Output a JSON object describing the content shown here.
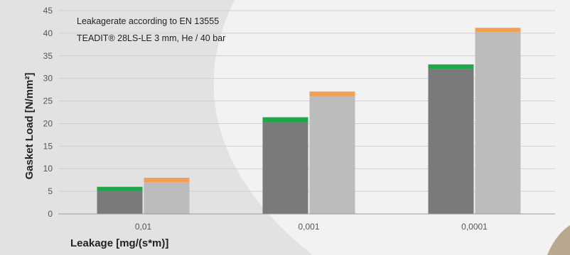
{
  "chart_data": {
    "type": "bar",
    "annotations": [
      "Leakagerate according to EN 13555",
      "TEADIT® 28LS-LE 3 mm, He / 40 bar"
    ],
    "xlabel": "Leakage [mg/(s*m)]",
    "ylabel": "Gasket Load [N/mm²]",
    "categories": [
      "0,01",
      "0,001",
      "0,0001"
    ],
    "ylim": [
      0,
      45
    ],
    "yticks": [
      0,
      5,
      10,
      15,
      20,
      25,
      30,
      35,
      40,
      45
    ],
    "grid": true,
    "stacked": true,
    "series": [
      {
        "color_base": "#7a7a7a",
        "color_cap": "#1ea84a",
        "base_values": [
          5,
          20.3,
          32
        ],
        "cap_values": [
          1,
          1.1,
          1.1
        ]
      },
      {
        "color_base": "#bcbcbc",
        "color_cap": "#f3a052",
        "base_values": [
          7,
          26,
          40.3
        ],
        "cap_values": [
          1,
          1.1,
          0.9
        ]
      }
    ]
  }
}
